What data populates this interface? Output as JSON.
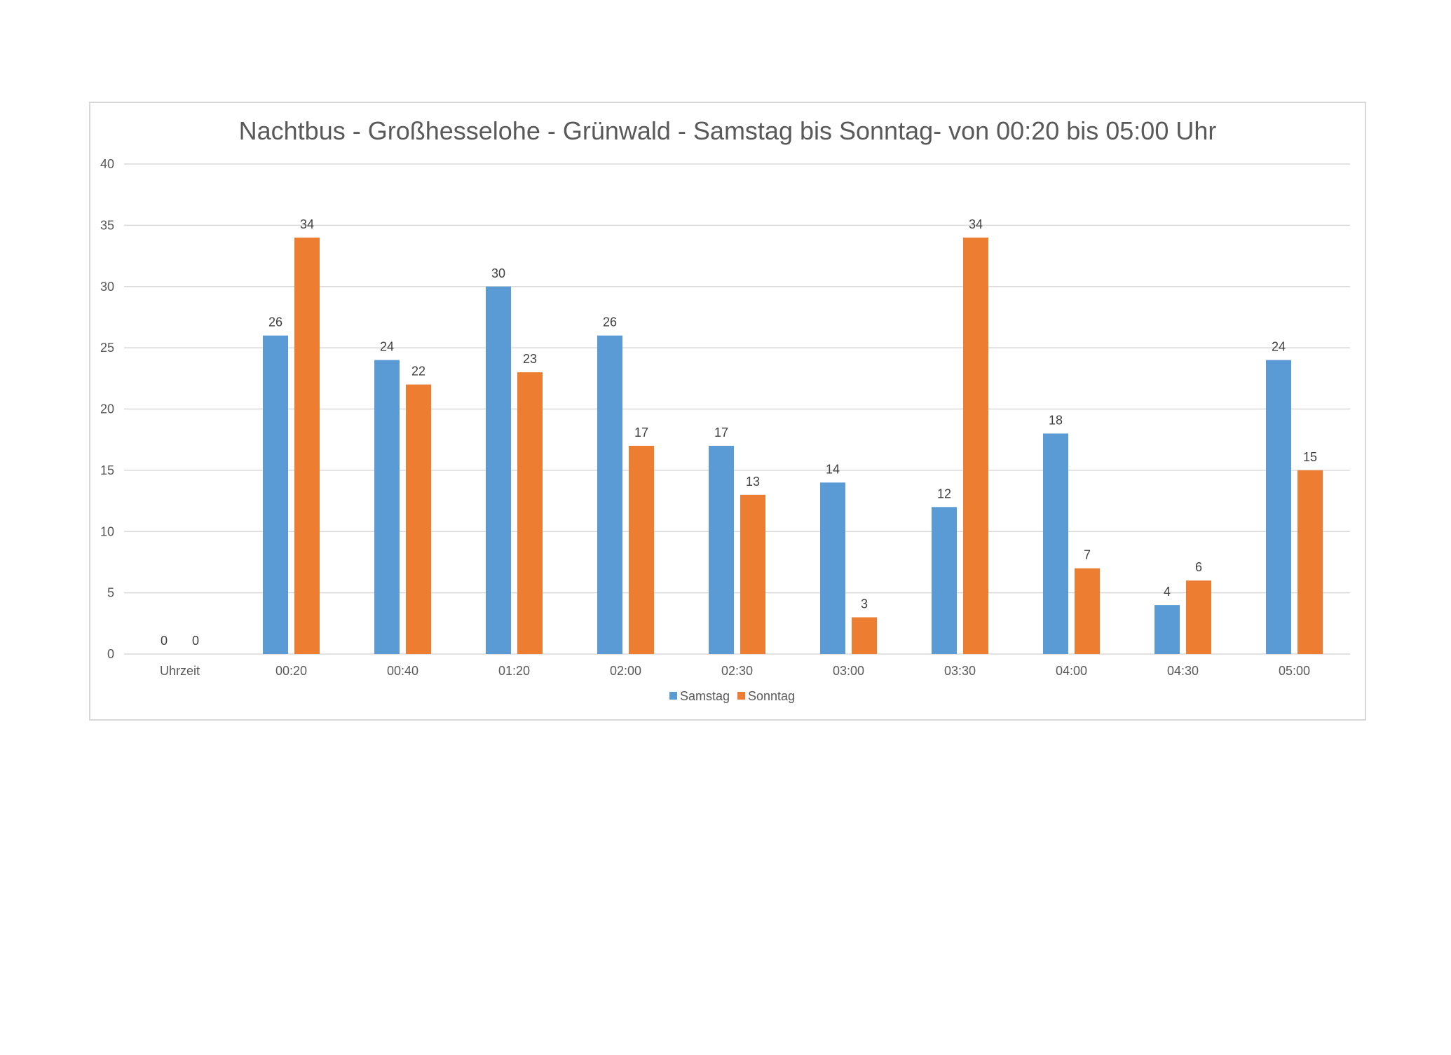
{
  "chart_data": {
    "type": "bar",
    "title": "Nachtbus - Großhesselohe - Grünwald - Samstag bis Sonntag- von 00:20 bis 05:00 Uhr",
    "categories": [
      "Uhrzeit",
      "00:20",
      "00:40",
      "01:20",
      "02:00",
      "02:30",
      "03:00",
      "03:30",
      "04:00",
      "04:30",
      "05:00"
    ],
    "series": [
      {
        "name": "Samstag",
        "color": "#5b9bd5",
        "values": [
          0,
          26,
          24,
          30,
          26,
          17,
          14,
          12,
          18,
          4,
          24
        ]
      },
      {
        "name": "Sonntag",
        "color": "#ed7d31",
        "values": [
          0,
          34,
          22,
          23,
          17,
          13,
          3,
          34,
          7,
          6,
          15
        ]
      }
    ],
    "ylim": [
      0,
      40
    ],
    "yticks": [
      0,
      5,
      10,
      15,
      20,
      25,
      30,
      35,
      40
    ],
    "grid": true,
    "data_labels": true,
    "legend_position": "bottom"
  }
}
